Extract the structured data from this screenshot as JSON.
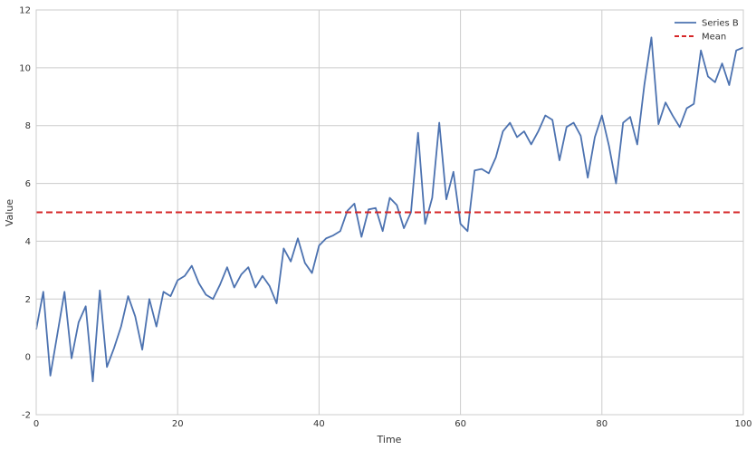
{
  "chart_data": {
    "type": "line",
    "title": "",
    "xlabel": "Time",
    "ylabel": "Value",
    "xlim": [
      0,
      100
    ],
    "ylim": [
      -2,
      12
    ],
    "xticks": [
      0,
      20,
      40,
      60,
      80,
      100
    ],
    "yticks": [
      -2,
      0,
      2,
      4,
      6,
      8,
      10,
      12
    ],
    "grid": true,
    "legend_position": "top-right",
    "series": [
      {
        "name": "Series B",
        "color": "#4C72B0",
        "style": "solid",
        "x": [
          0,
          1,
          2,
          3,
          4,
          5,
          6,
          7,
          8,
          9,
          10,
          11,
          12,
          13,
          14,
          15,
          16,
          17,
          18,
          19,
          20,
          21,
          22,
          23,
          24,
          25,
          26,
          27,
          28,
          29,
          30,
          31,
          32,
          33,
          34,
          35,
          36,
          37,
          38,
          39,
          40,
          41,
          42,
          43,
          44,
          45,
          46,
          47,
          48,
          49,
          50,
          51,
          52,
          53,
          54,
          55,
          56,
          57,
          58,
          59,
          60,
          61,
          62,
          63,
          64,
          65,
          66,
          67,
          68,
          69,
          70,
          71,
          72,
          73,
          74,
          75,
          76,
          77,
          78,
          79,
          80,
          81,
          82,
          83,
          84,
          85,
          86,
          87,
          88,
          89,
          90,
          91,
          92,
          93,
          94,
          95,
          96,
          97,
          98,
          99,
          100
        ],
        "values": [
          0.95,
          2.25,
          -0.65,
          0.8,
          2.25,
          -0.05,
          1.2,
          1.75,
          -0.85,
          2.3,
          -0.35,
          0.3,
          1.05,
          2.1,
          1.4,
          0.25,
          2.0,
          1.05,
          2.25,
          2.1,
          2.65,
          2.8,
          3.15,
          2.55,
          2.15,
          2.0,
          2.5,
          3.1,
          2.4,
          2.85,
          3.1,
          2.4,
          2.8,
          2.45,
          1.85,
          3.75,
          3.3,
          4.1,
          3.25,
          2.9,
          3.85,
          4.1,
          4.2,
          4.35,
          5.05,
          5.3,
          4.15,
          5.1,
          5.15,
          4.35,
          5.5,
          5.25,
          4.45,
          5.0,
          7.75,
          4.6,
          5.5,
          8.1,
          5.45,
          6.4,
          4.6,
          4.35,
          6.45,
          6.5,
          6.35,
          6.9,
          7.8,
          8.1,
          7.6,
          7.8,
          7.35,
          7.8,
          8.35,
          8.2,
          6.8,
          7.95,
          8.1,
          7.65,
          6.2,
          7.6,
          8.35,
          7.3,
          6.0,
          8.1,
          8.3,
          7.35,
          9.4,
          11.05,
          8.05,
          8.8,
          8.35,
          7.95,
          8.6,
          8.75,
          10.6,
          9.7,
          9.5,
          10.15,
          9.4,
          10.6,
          10.7
        ]
      },
      {
        "name": "Mean",
        "color": "#D62728",
        "style": "dashed",
        "x": [
          0,
          100
        ],
        "values": [
          5.0,
          5.0
        ]
      }
    ]
  }
}
